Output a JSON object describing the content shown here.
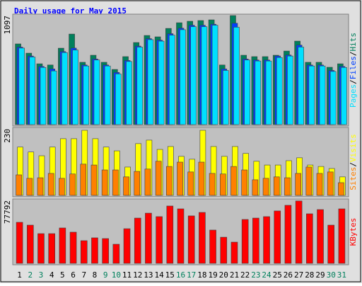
{
  "chart_data": [
    {
      "type": "bar",
      "title": "Daily usage for May 2015",
      "legend_separator": "/",
      "ylim": [
        0,
        1097
      ],
      "yticks": [
        1097
      ],
      "series": [
        {
          "name": "Hits",
          "color": "#00805c",
          "values": [
            812,
            719,
            612,
            600,
            769,
            911,
            627,
            698,
            627,
            555,
            684,
            826,
            897,
            883,
            968,
            1025,
            1040,
            1047,
            1054,
            600,
            1097,
            698,
            684,
            684,
            698,
            740,
            840,
            627,
            627,
            577,
            612
          ]
        },
        {
          "name": "Files",
          "color": "#0040ff",
          "values": [
            780,
            690,
            585,
            560,
            735,
            770,
            600,
            660,
            600,
            525,
            645,
            790,
            865,
            850,
            915,
            970,
            1000,
            1000,
            1010,
            560,
            1020,
            660,
            650,
            650,
            690,
            700,
            800,
            600,
            600,
            545,
            585
          ]
        },
        {
          "name": "Pages",
          "color": "#00e0ff",
          "values": [
            770,
            680,
            575,
            540,
            725,
            750,
            590,
            650,
            590,
            510,
            635,
            780,
            855,
            840,
            900,
            955,
            985,
            985,
            1000,
            545,
            980,
            650,
            640,
            640,
            675,
            690,
            780,
            590,
            590,
            535,
            575
          ]
        }
      ]
    },
    {
      "type": "bar",
      "legend_separator": "/",
      "ylim": [
        0,
        230
      ],
      "yticks": [
        230
      ],
      "series": [
        {
          "name": "Visits",
          "color": "#ffff00",
          "values": [
            167,
            150,
            137,
            167,
            196,
            196,
            225,
            196,
            167,
            154,
            98,
            179,
            191,
            159,
            169,
            135,
            125,
            225,
            169,
            135,
            169,
            145,
            118,
            105,
            105,
            120,
            130,
            105,
            100,
            93,
            64
          ]
        },
        {
          "name": "Sites",
          "color": "#ff8000",
          "values": [
            71,
            59,
            61,
            76,
            59,
            74,
            108,
            105,
            88,
            88,
            64,
            83,
            91,
            118,
            100,
            115,
            81,
            115,
            76,
            74,
            100,
            88,
            54,
            59,
            64,
            61,
            76,
            98,
            76,
            81,
            44
          ]
        }
      ]
    },
    {
      "type": "bar",
      "ylim": [
        0,
        77792
      ],
      "yticks": [
        77792
      ],
      "categories": [
        "1",
        "2",
        "3",
        "4",
        "5",
        "6",
        "7",
        "8",
        "9",
        "10",
        "11",
        "12",
        "13",
        "14",
        "15",
        "16",
        "17",
        "18",
        "19",
        "20",
        "21",
        "22",
        "23",
        "24",
        "25",
        "26",
        "27",
        "28",
        "29",
        "30",
        "31"
      ],
      "category_colors": [
        "#000000",
        "#00805c",
        "#00805c",
        "#000000",
        "#000000",
        "#000000",
        "#000000",
        "#000000",
        "#00805c",
        "#00805c",
        "#000000",
        "#000000",
        "#000000",
        "#000000",
        "#000000",
        "#00805c",
        "#00805c",
        "#000000",
        "#000000",
        "#000000",
        "#000000",
        "#000000",
        "#00805c",
        "#00805c",
        "#000000",
        "#000000",
        "#000000",
        "#000000",
        "#000000",
        "#00805c",
        "#00805c"
      ],
      "series": [
        {
          "name": "KBytes",
          "color": "#ff0000",
          "values": [
            50700,
            47200,
            36700,
            36700,
            43700,
            38500,
            28000,
            31500,
            30600,
            23600,
            42800,
            55900,
            62000,
            57700,
            70800,
            67300,
            58600,
            62900,
            41100,
            32300,
            26200,
            54200,
            55900,
            57700,
            64700,
            71700,
            77000,
            61200,
            66400,
            47200,
            67300
          ]
        }
      ]
    }
  ]
}
